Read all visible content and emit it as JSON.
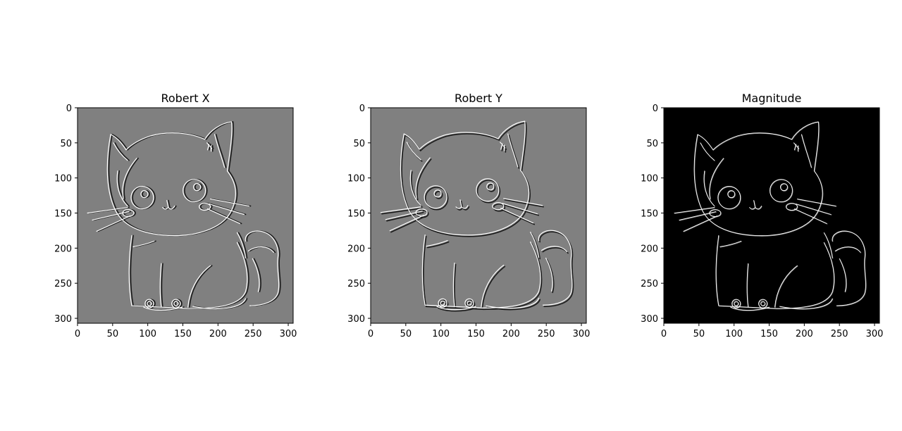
{
  "figure": {
    "panels": [
      {
        "title": "Robert X"
      },
      {
        "title": "Robert Y"
      },
      {
        "title": "Magnitude"
      }
    ]
  },
  "chart_data": [
    {
      "type": "image",
      "title": "Robert X",
      "xlabel": "",
      "ylabel": "",
      "xlim": [
        0,
        307
      ],
      "ylim": [
        307,
        0
      ],
      "x_ticks": [
        0,
        50,
        100,
        150,
        200,
        250,
        300
      ],
      "y_ticks": [
        0,
        50,
        100,
        150,
        200,
        250,
        300
      ],
      "background": "#808080",
      "stroke_light": "#ffffff",
      "stroke_dark": "#1c1c1c",
      "content": "embossed-kitten-edge-map"
    },
    {
      "type": "image",
      "title": "Robert Y",
      "xlabel": "",
      "ylabel": "",
      "xlim": [
        0,
        307
      ],
      "ylim": [
        307,
        0
      ],
      "x_ticks": [
        0,
        50,
        100,
        150,
        200,
        250,
        300
      ],
      "y_ticks": [
        0,
        50,
        100,
        150,
        200,
        250,
        300
      ],
      "background": "#808080",
      "stroke_light": "#ffffff",
      "stroke_dark": "#1c1c1c",
      "content": "embossed-kitten-edge-map"
    },
    {
      "type": "image",
      "title": "Magnitude",
      "xlabel": "",
      "ylabel": "",
      "xlim": [
        0,
        307
      ],
      "ylim": [
        307,
        0
      ],
      "x_ticks": [
        0,
        50,
        100,
        150,
        200,
        250,
        300
      ],
      "y_ticks": [
        0,
        50,
        100,
        150,
        200,
        250,
        300
      ],
      "background": "#000000",
      "stroke_light": "#ffffff",
      "stroke_dark": "#b0b0b0",
      "content": "kitten-edge-magnitude"
    }
  ]
}
